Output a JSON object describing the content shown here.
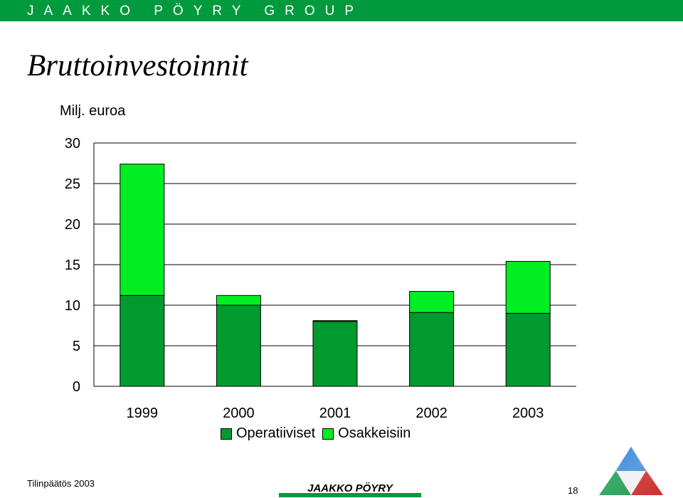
{
  "header": {
    "brand": "JAAKKO PÖYRY GROUP"
  },
  "page_title": "Bruttoinvestoinnit",
  "footer": {
    "left_text": "Tilinpäätös 2003",
    "page_number": "18",
    "logo_text": "JAAKKO PÖYRY"
  },
  "colors": {
    "band": "#009a3e",
    "operatiiviset": "#009a2e",
    "osakkeisiin": "#00ee22"
  },
  "chart_data": {
    "type": "bar",
    "stacked": true,
    "ylabel": "Milj. euroa",
    "ylim": [
      0,
      30
    ],
    "yticks": [
      0,
      5,
      10,
      15,
      20,
      25,
      30
    ],
    "categories": [
      "1999",
      "2000",
      "2001",
      "2002",
      "2003"
    ],
    "series": [
      {
        "name": "Operatiiviset",
        "values": [
          11.2,
          10.0,
          8.0,
          9.1,
          9.0
        ]
      },
      {
        "name": "Osakkeisiin",
        "values": [
          16.2,
          1.2,
          0.1,
          2.6,
          6.4
        ]
      }
    ],
    "grid": true,
    "legend_position": "bottom"
  }
}
